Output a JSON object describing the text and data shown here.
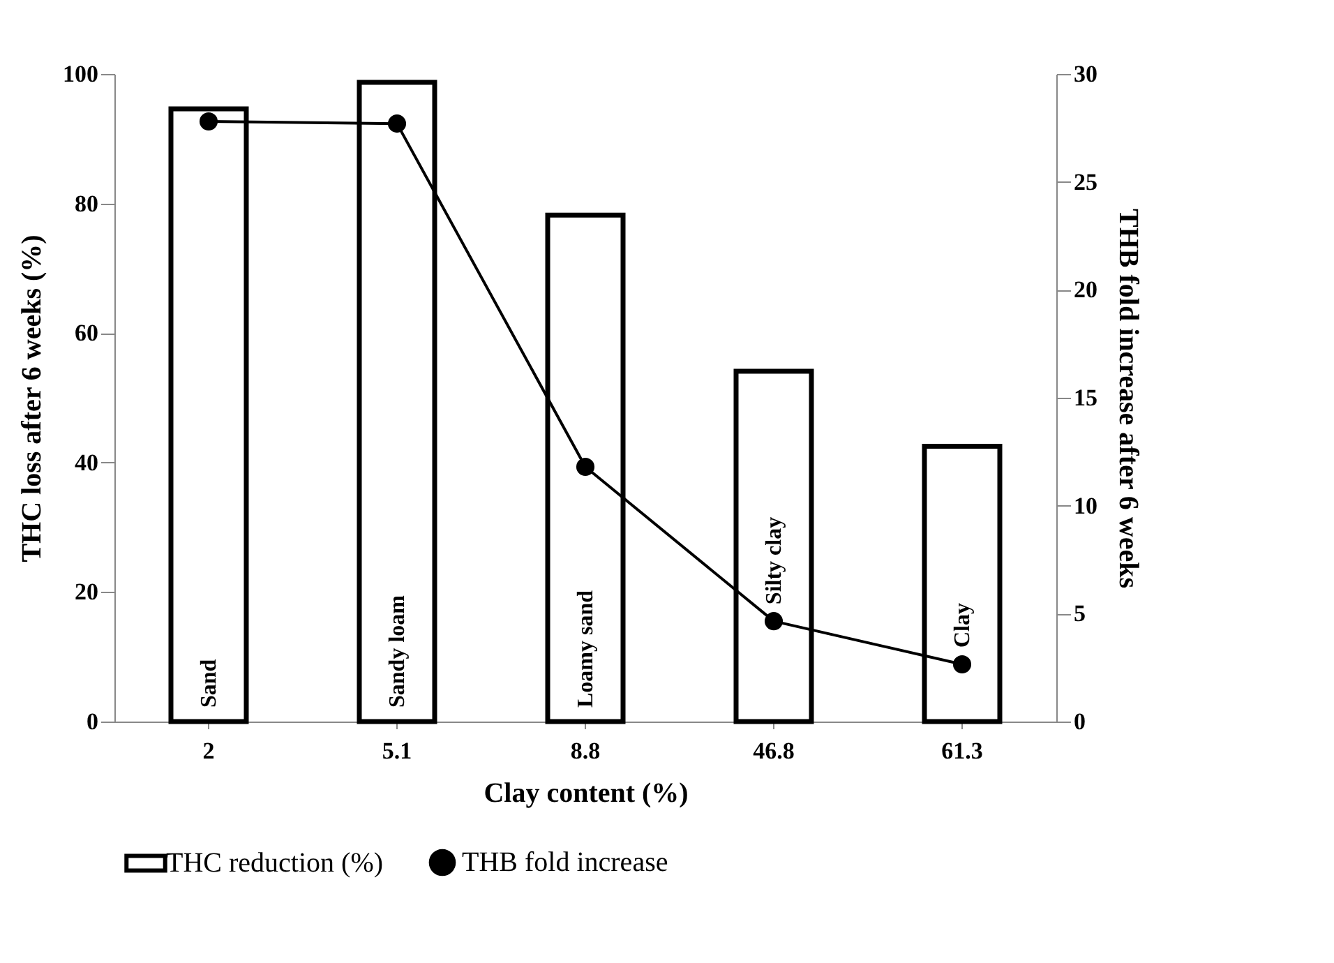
{
  "chart_data": {
    "type": "bar",
    "xlabel": "Clay content (%)",
    "ylabel": "THC loss  after 6 weeks (%)",
    "y2label": "THB fold increase after 6 weeks",
    "categories": [
      "2",
      "5.1",
      "8.8",
      "46.8",
      "61.3"
    ],
    "series": [
      {
        "name": "THC reduction (%)",
        "color": "#000000",
        "values": [
          94.6,
          98.7,
          78.2,
          54.1,
          42.5
        ]
      },
      {
        "name": "THB  fold increase",
        "type": "line",
        "axis": "y2",
        "color": "#000000",
        "marker": "circle",
        "values": [
          27.8,
          27.7,
          11.8,
          4.65,
          2.65
        ]
      }
    ],
    "ylim": [
      0,
      100
    ],
    "yticks": [
      0,
      20,
      40,
      60,
      80,
      100
    ],
    "y2lim": [
      0,
      30
    ],
    "y2ticks": [
      0,
      5,
      10,
      15,
      20,
      25,
      30
    ],
    "annotations": [
      "Sand",
      "Sandy loam",
      "Loamy  sand",
      "Silty clay",
      "Clay"
    ],
    "grid": false,
    "legend": "bottom"
  }
}
